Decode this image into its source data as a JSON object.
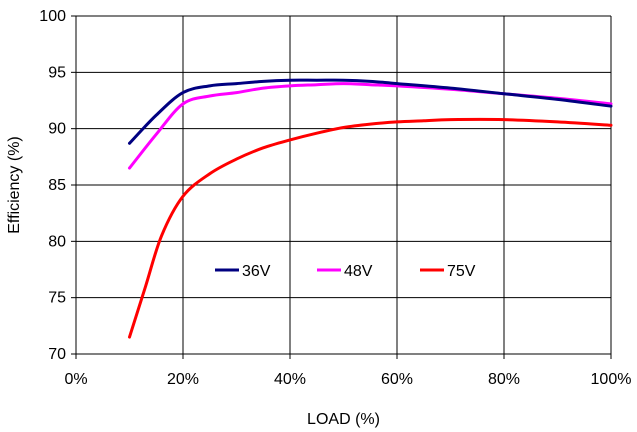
{
  "chart_data": {
    "type": "line",
    "title": "",
    "xlabel": "LOAD (%)",
    "ylabel": "Efficiency (%)",
    "xlim": [
      0,
      100
    ],
    "ylim": [
      70,
      100
    ],
    "x_ticks": [
      0,
      20,
      40,
      60,
      80,
      100
    ],
    "x_tick_labels": [
      "0%",
      "20%",
      "40%",
      "60%",
      "80%",
      "100%"
    ],
    "y_ticks": [
      70,
      75,
      80,
      85,
      90,
      95,
      100
    ],
    "y_tick_labels": [
      "70",
      "75",
      "80",
      "85",
      "90",
      "95",
      "100"
    ],
    "grid": true,
    "legend_position": "center",
    "series": [
      {
        "name": "36V",
        "color": "#000080",
        "x": [
          10,
          15,
          20,
          25,
          30,
          35,
          40,
          45,
          50,
          55,
          60,
          70,
          80,
          90,
          100
        ],
        "y": [
          88.7,
          91.2,
          93.2,
          93.8,
          94.0,
          94.2,
          94.3,
          94.3,
          94.3,
          94.2,
          94.0,
          93.6,
          93.1,
          92.6,
          92.0
        ]
      },
      {
        "name": "48V",
        "color": "#ff00ff",
        "x": [
          10,
          15,
          20,
          25,
          30,
          35,
          40,
          45,
          50,
          55,
          60,
          70,
          80,
          90,
          100
        ],
        "y": [
          86.5,
          89.5,
          92.2,
          92.9,
          93.2,
          93.6,
          93.8,
          93.9,
          94.0,
          93.9,
          93.8,
          93.5,
          93.1,
          92.7,
          92.2
        ]
      },
      {
        "name": "75V",
        "color": "#ff0000",
        "x": [
          10,
          13,
          16,
          20,
          25,
          30,
          35,
          40,
          45,
          50,
          55,
          60,
          65,
          70,
          80,
          90,
          100
        ],
        "y": [
          71.5,
          76.0,
          80.5,
          84.0,
          86.0,
          87.3,
          88.3,
          89.0,
          89.6,
          90.1,
          90.4,
          90.6,
          90.7,
          90.8,
          90.8,
          90.6,
          90.3
        ]
      }
    ]
  }
}
